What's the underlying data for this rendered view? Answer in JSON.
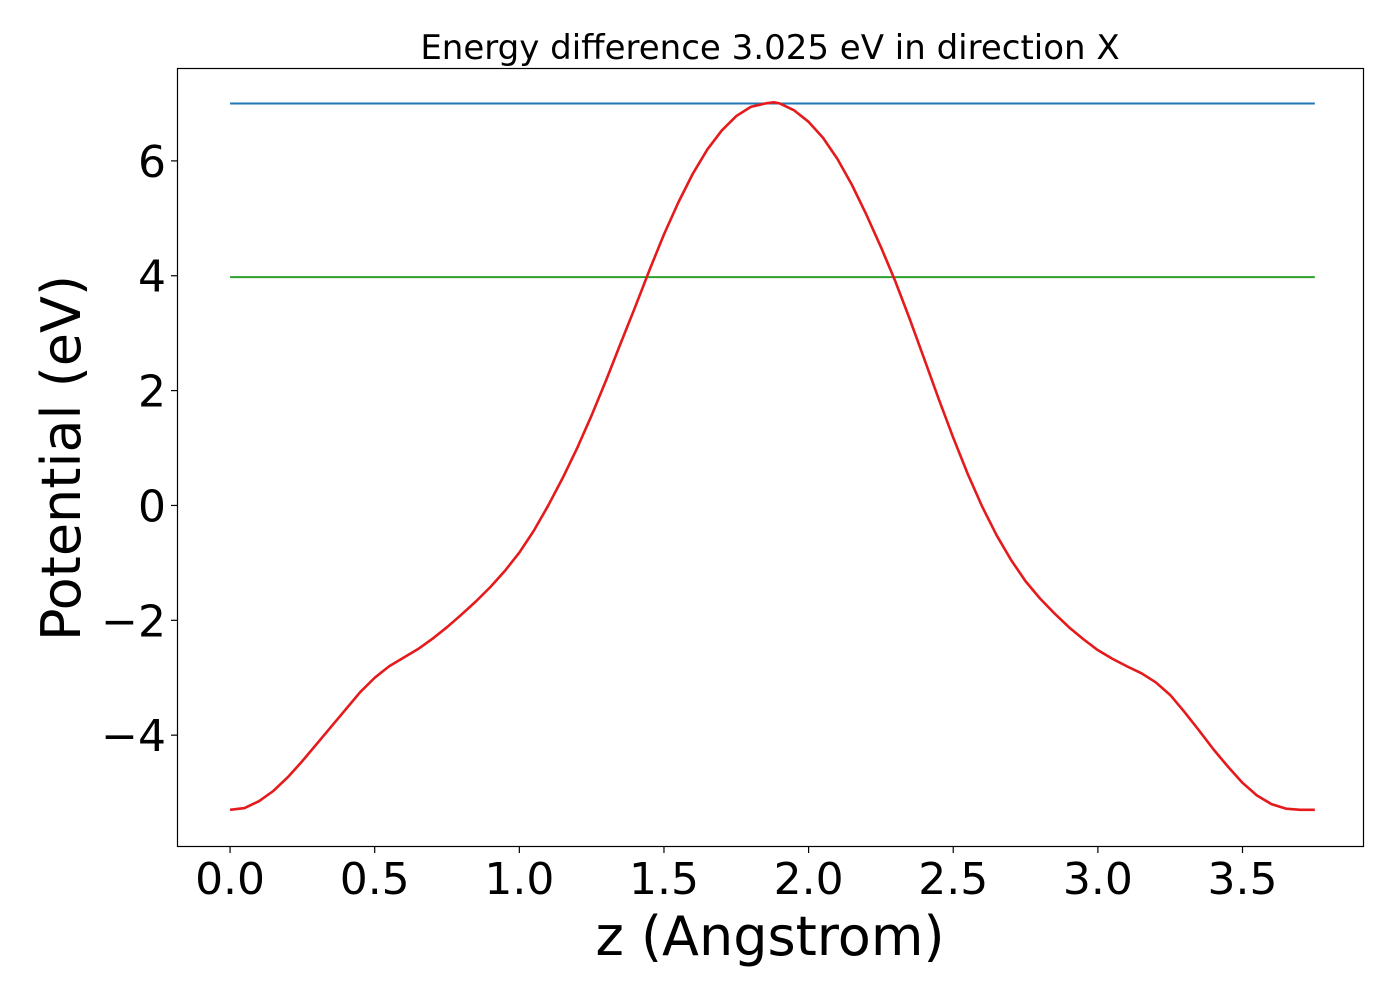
{
  "chart_data": {
    "type": "line",
    "title": "Energy difference 3.025 eV in direction X",
    "xlabel": "z (Angstrom)",
    "ylabel": "Potential (eV)",
    "xlim": [
      -0.18,
      3.92
    ],
    "ylim": [
      -5.93,
      7.6
    ],
    "xticks": [
      0.0,
      0.5,
      1.0,
      1.5,
      2.0,
      2.5,
      3.0,
      3.5
    ],
    "xtick_labels": [
      "0.0",
      "0.5",
      "1.0",
      "1.5",
      "2.0",
      "2.5",
      "3.0",
      "3.5"
    ],
    "yticks": [
      -4,
      -2,
      0,
      2,
      4,
      6
    ],
    "ytick_labels": [
      "−4",
      "−2",
      "0",
      "2",
      "4",
      "6"
    ],
    "grid": false,
    "series": [
      {
        "color": "#1f77b4",
        "x": [
          0.0,
          3.75
        ],
        "y": [
          7.0,
          7.0
        ]
      },
      {
        "color": "#2ca02c",
        "x": [
          0.0,
          3.75
        ],
        "y": [
          3.975,
          3.975
        ]
      },
      {
        "color": "#e41a1c",
        "x": [
          0.0,
          0.05,
          0.1,
          0.15,
          0.2,
          0.25,
          0.3,
          0.35,
          0.4,
          0.45,
          0.5,
          0.55,
          0.6,
          0.65,
          0.7,
          0.75,
          0.8,
          0.85,
          0.9,
          0.95,
          1.0,
          1.05,
          1.1,
          1.15,
          1.2,
          1.25,
          1.3,
          1.35,
          1.4,
          1.45,
          1.5,
          1.55,
          1.6,
          1.65,
          1.7,
          1.75,
          1.8,
          1.85,
          1.88,
          1.9,
          1.95,
          2.0,
          2.05,
          2.1,
          2.15,
          2.2,
          2.25,
          2.3,
          2.35,
          2.4,
          2.45,
          2.5,
          2.55,
          2.6,
          2.65,
          2.7,
          2.75,
          2.8,
          2.85,
          2.9,
          2.95,
          3.0,
          3.05,
          3.1,
          3.15,
          3.2,
          3.25,
          3.3,
          3.35,
          3.4,
          3.45,
          3.5,
          3.55,
          3.6,
          3.65,
          3.7,
          3.75
        ],
        "y": [
          -5.3,
          -5.27,
          -5.15,
          -4.97,
          -4.73,
          -4.45,
          -4.15,
          -3.85,
          -3.55,
          -3.25,
          -3.0,
          -2.8,
          -2.65,
          -2.5,
          -2.32,
          -2.12,
          -1.9,
          -1.67,
          -1.42,
          -1.14,
          -0.82,
          -0.44,
          0.0,
          0.48,
          1.0,
          1.57,
          2.18,
          2.82,
          3.45,
          4.1,
          4.72,
          5.28,
          5.78,
          6.2,
          6.53,
          6.78,
          6.94,
          7.0,
          7.02,
          7.0,
          6.88,
          6.68,
          6.4,
          6.03,
          5.58,
          5.06,
          4.5,
          3.9,
          3.24,
          2.55,
          1.85,
          1.18,
          0.55,
          -0.02,
          -0.52,
          -0.95,
          -1.32,
          -1.62,
          -1.88,
          -2.12,
          -2.33,
          -2.52,
          -2.67,
          -2.8,
          -2.92,
          -3.08,
          -3.3,
          -3.6,
          -3.92,
          -4.25,
          -4.55,
          -4.83,
          -5.05,
          -5.2,
          -5.28,
          -5.3,
          -5.3
        ]
      }
    ]
  }
}
